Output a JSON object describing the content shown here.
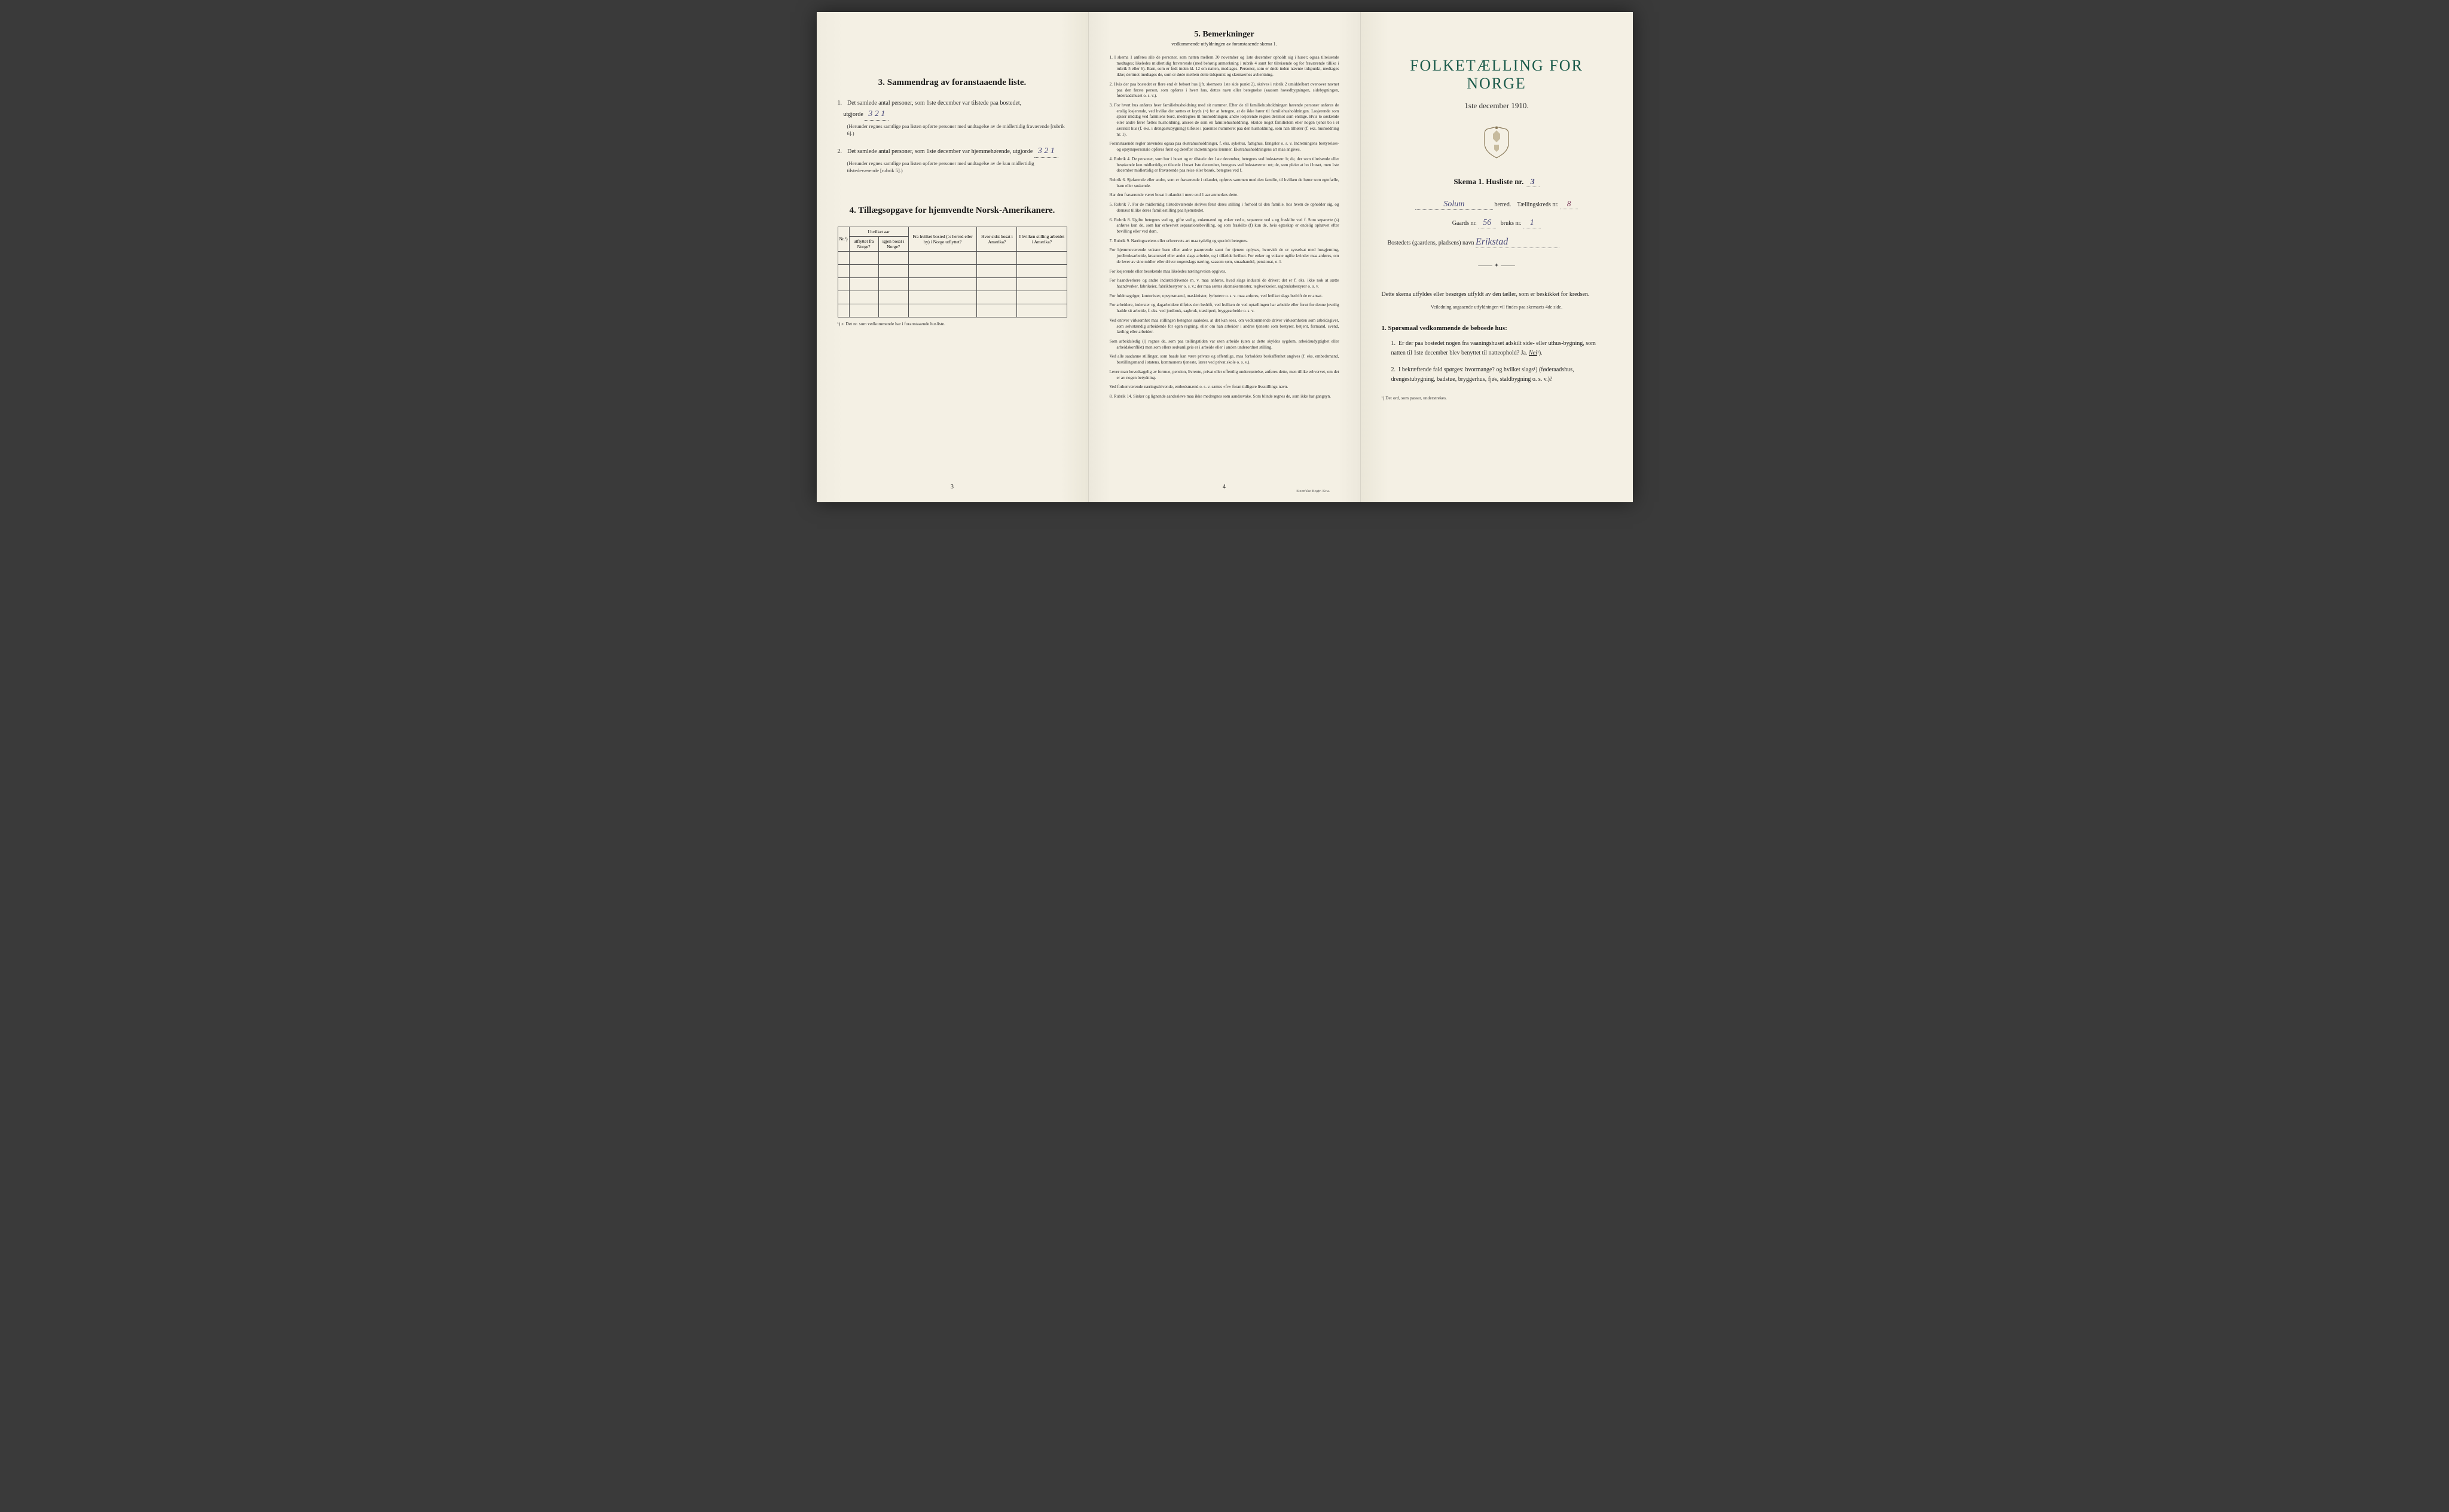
{
  "page_left": {
    "section3_heading": "3.   Sammendrag av foranstaaende liste.",
    "item1_text": "Det samlede antal personer, som 1ste december var tilstede paa bostedet,",
    "item1_label": "utgjorde",
    "item1_value": "3   2  1",
    "item1_note": "(Herunder regnes samtlige paa listen opførte personer med undtagelse av de midlertidig fraværende [rubrik 6].)",
    "item2_text": "Det samlede antal personer, som 1ste december var hjemmehørende, utgjorde",
    "item2_value": "3   2  1",
    "item2_note": "(Herunder regnes samtlige paa listen opførte personer med undtagelse av de kun midlertidig tilstedeværende [rubrik 5].)",
    "section4_heading": "4.   Tillægsopgave for hjemvendte Norsk-Amerikanere.",
    "table": {
      "col_nr": "Nr.¹)",
      "col_group1": "I hvilket aar",
      "col_utflyttet": "utflyttet fra Norge?",
      "col_igjen": "igjen bosat i Norge?",
      "col_bosted": "Fra hvilket bosted (ɔ: herred eller by) i Norge utflyttet?",
      "col_hvor": "Hvor sidst bosat i Amerika?",
      "col_stilling": "I hvilken stilling arbeidet i Amerika?",
      "row_count": 5
    },
    "table_footnote": "¹) ɔ: Det nr. som vedkommende har i foranstaaende husliste.",
    "page_num": "3"
  },
  "page_middle": {
    "heading": "5.   Bemerkninger",
    "subheading": "vedkommende utfyldningen av foranstaaende skema 1.",
    "items": [
      "1. I skema 1 anføres alle de personer, som natten mellem 30 november og 1ste december opholdt sig i huset; ogsaa tilreisende medtages; likeledes midlertidig fraværende (med behørig anmerkning i rubrik 4 samt for tilreisende og for fraværende tillike i rubrik 5 eller 6). Barn, som er født inden kl. 12 om natten, medtages. Personer, som er døde inden nævnte tidspunkt, medtages ikke; derimot medtages de, som er døde mellem dette tidspunkt og skemaernes avhentning.",
      "2. Hvis der paa bostedet er flere end ét beboet hus (jfr. skemaets 1ste side punkt 2), skrives i rubrik 2 umiddelbart ovenover navnet paa den første person, som opføres i hvert hus, dettes navn eller betegnelse (saasom hovedbygningen, sidebygningen, føderaadshuset o. s. v.).",
      "3. For hvert hus anføres hver familiehusholdning med sit nummer. Efter de til familiehusholdningen hørende personer anføres de enslig losjerende, ved hvilke der sættes et kryds (×) for at betegne, at de ikke hører til familiehusholdningen. Losjerende som spiser middag ved familiens bord, medregnes til husholdningen; andre losjerende regnes derimot som enslige. Hvis to søskende eller andre fører fælles husholdning, ansees de som en familiehusholdning. Skulde noget familielem eller nogen tjener bo i et særskilt hus (f. eks. i drengestubygning) tilføies i parentes nummeret paa den husholdning, som han tilhører (f. eks. husholdning nr. 1).",
      "Foranstaaende regler anvendes ogsaa paa ekstrahusholdninger, f. eks. sykehus, fattighus, fængsler o. s. v. Indretningens bestyrelses- og opsynspersonale opføres først og derefter indretningens lemmer. Ekstrahusholdningens art maa angives.",
      "4. Rubrik 4. De personer, som bor i huset og er tilstede der 1ste december, betegnes ved bokstaven: b; de, der som tilreisende eller besøkende kun midlertidig er tilstede i huset 1ste december, betegnes ved bokstaverne: mt; de, som pleier at bo i huset, men 1ste december midlertidig er fraværende paa reise eller besøk, betegnes ved f.",
      "Rubrik 6. Sjøfarende eller andre, som er fraværende i utlandet, opføres sammen med den familie, til hvilken de hører som egtefælle, barn eller søskende.",
      "Har den fraværende været bosat i utlandet i mere end 1 aar anmerkes dette.",
      "5. Rubrik 7. For de midlertidig tilstedeværende skrives først deres stilling i forhold til den familie, hos hvem de opholder sig, og dernæst tillike deres familiestilling paa hjemstedet.",
      "6. Rubrik 8. Ugifte betegnes ved ug, gifte ved g, enkemænd og enker ved e, separerte ved s og fraskilte ved f. Som separerte (s) anføres kun de, som har erhvervet separationsbevilling, og som fraskilte (f) kun de, hvis egteskap er endelig ophævet efter bevilling eller ved dom.",
      "7. Rubrik 9. Næringsveiens eller erhvervets art maa tydelig og specielt betegnes.",
      "For hjemmeværende voksne barn eller andre paarørende samt for tjenere oplyses, hvorvidt de er sysselsat med husgjerning, jordbruksarbeide, kreaturstel eller andet slags arbeide, og i tilfælde hvilket. For enker og voksne ugifte kvinder maa anføres, om de lever av sine midler eller driver nogenslags næring, saasom søm, smaahandel, pensionat, o. l.",
      "For losjerende eller besøkende maa likeledes næringsveien opgives.",
      "For haandverkere og andre industridrivende m. v. maa anføres, hvad slags industri de driver; det er f. eks. ikke nok at sætte haandverker, fabrikeier, fabrikbestyrer o. s. v.; der maa sættes skomakermester, teglverkseier, sagbruksbestyrer o. s. v.",
      "For fuldmægtiger, kontorister, opsynsmænd, maskinister, fyrbøtere o. s. v. maa anføres, ved hvilket slags bedrift de er ansat.",
      "For arbeidere, inderster og dagarbeidere tilføies den bedrift, ved hvilken de ved optællingen har arbeide eller forut for denne jevnlig hadde sit arbeide, f. eks. ved jordbruk, sagbruk, træsliperi, bryggearbeide o. s. v.",
      "Ved enhver virksomhet maa stillingen betegnes saaledes, at det kan sees, om vedkommende driver virksomheten som arbeidsgiver, som selvstændig arbeidende for egen regning, eller om han arbeider i andres tjeneste som bestyrer, betjent, formand, svend, lærling eller arbeider.",
      "Som arbeidsledig (l) regnes de, som paa tællingstiden var uten arbeide (uten at dette skyldes sygdom, arbeidsudygtighet eller arbeidskonflikt) men som ellers sedvanligvis er i arbeide eller i anden underordnet stilling.",
      "Ved alle saadanne stillinger, som baade kan være private og offentlige, maa forholdets beskaffenhet angives (f. eks. embedsmand, bestillingsmand i statens, kommunens tjeneste, lærer ved privat skole o. s. v.).",
      "Lever man hovedsagelig av formue, pension, livrente, privat eller offentlig understøttelse, anføres dette, men tillike erhvervet, om det er av nogen betydning.",
      "Ved forhenværende næringsdrivende, embedsmænd o. s. v. sættes «fv» foran tidligere livsstillings navn.",
      "8. Rubrik 14. Sinker og lignende aandssløve maa ikke medregnes som aandssvake. Som blinde regnes de, som ikke har gangsyn."
    ],
    "page_num": "4",
    "printer": "Steen'ske Bogtr. Kr.a."
  },
  "page_right": {
    "main_title": "FOLKETÆLLING FOR NORGE",
    "sub_title": "1ste december 1910.",
    "skema_label": "Skema 1.   Husliste nr.",
    "husliste_nr": "3",
    "herred_value": "Solum",
    "herred_label": "herred.",
    "taellingskreds_label": "Tællingskreds nr.",
    "taellingskreds_value": "8",
    "gaards_label": "Gaards nr.",
    "gaards_value": "56",
    "bruks_label": "bruks nr.",
    "bruks_value": "1",
    "bostedets_label": "Bostedets (gaardens, pladsens) navn",
    "bostedets_value": "Erikstad",
    "instructions": "Dette skema utfyldes eller besørges utfyldt av den tæller, som er beskikket for kredsen.",
    "instructions_small": "Veiledning angaaende utfyldningen vil findes paa skemaets 4de side.",
    "sporsmaal_heading": "1. Spørsmaal vedkommende de beboede hus:",
    "q1": "Er der paa bostedet nogen fra vaaningshuset adskilt side- eller uthus-bygning, som natten til 1ste december blev benyttet til natteophold?   Ja.",
    "q1_nei": "Nei",
    "q1_sup": "¹).",
    "q2": "I bekræftende fald spørges: hvormange?",
    "q2_rest": "og hvilket slags¹) (føderaadshus, drengestubygning, badstue, bryggerhus, fjøs, staldbygning o. s. v.)?",
    "right_footnote": "¹) Det ord, som passer, understrekes."
  }
}
